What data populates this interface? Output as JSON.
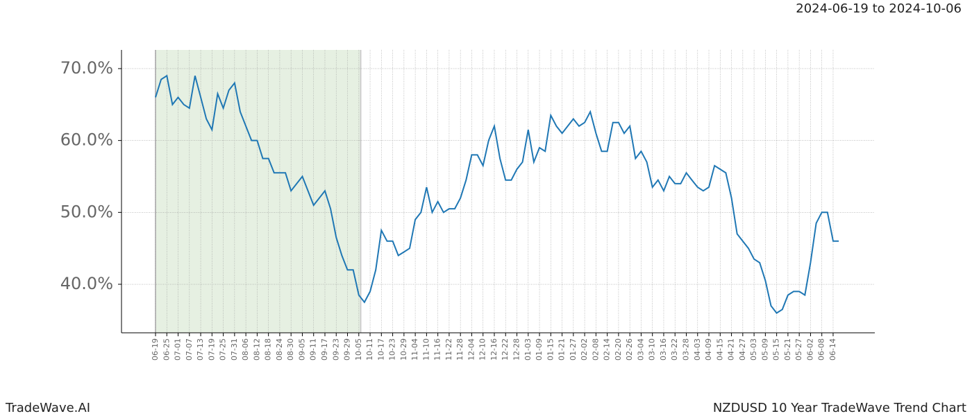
{
  "chart_data": {
    "type": "line",
    "title": "2024-06-19 to 2024-10-06",
    "footer_left": "TradeWave.AI",
    "footer_right": "NZDUSD 10 Year TradeWave Trend Chart",
    "categories": [
      "06-19",
      null,
      "06-25",
      null,
      "07-01",
      null,
      "07-07",
      null,
      "07-13",
      null,
      "07-19",
      null,
      "07-25",
      null,
      "07-31",
      null,
      "08-06",
      null,
      "08-12",
      null,
      "08-18",
      null,
      "08-24",
      null,
      "08-30",
      null,
      "09-05",
      null,
      "09-11",
      null,
      "09-17",
      null,
      "09-23",
      null,
      "09-29",
      null,
      "10-05",
      null,
      "10-11",
      null,
      "10-17",
      null,
      "10-23",
      null,
      "10-29",
      null,
      "11-04",
      null,
      "11-10",
      null,
      "11-16",
      null,
      "11-22",
      null,
      "11-28",
      null,
      "12-04",
      null,
      "12-10",
      null,
      "12-16",
      null,
      "12-22",
      null,
      "12-28",
      null,
      "01-03",
      null,
      "01-09",
      null,
      "01-15",
      null,
      "01-21",
      null,
      "01-27",
      null,
      "02-02",
      null,
      "02-08",
      null,
      "02-14",
      null,
      "02-20",
      null,
      "02-26",
      null,
      "03-04",
      null,
      "03-10",
      null,
      "03-16",
      null,
      "03-22",
      null,
      "03-28",
      null,
      "04-03",
      null,
      "04-09",
      null,
      "04-15",
      null,
      "04-21",
      null,
      "04-27",
      null,
      "05-03",
      null,
      "05-09",
      null,
      "05-15",
      null,
      "05-21",
      null,
      "05-27",
      null,
      "06-02",
      null,
      "06-08",
      null,
      "06-14",
      null
    ],
    "series": [
      {
        "color": "#1f77b4",
        "values": [
          66,
          68.5,
          69,
          65,
          66,
          65,
          64.5,
          69,
          66,
          63,
          61.5,
          66.5,
          64.5,
          67,
          68,
          64,
          62,
          60,
          60,
          57.5,
          57.5,
          55.5,
          55.5,
          55.5,
          53,
          54,
          55,
          53,
          51,
          52,
          53,
          50.5,
          46.5,
          44,
          42,
          42,
          38.5,
          37.5,
          39,
          42,
          47.5,
          46,
          46,
          44,
          44.5,
          45,
          49,
          50,
          53.5,
          50,
          51.5,
          50,
          50.5,
          50.5,
          52,
          54.5,
          58,
          58,
          56.5,
          60,
          62,
          57.5,
          54.5,
          54.5,
          56,
          57,
          61.5,
          57,
          59,
          58.5,
          63.5,
          62,
          61,
          62,
          63,
          62,
          62.5,
          64,
          61,
          58.5,
          58.5,
          62.5,
          62.5,
          61,
          62,
          57.5,
          58.5,
          57,
          53.5,
          54.5,
          53,
          55,
          54,
          54,
          55.5,
          54.5,
          53.5,
          53,
          53.5,
          56.5,
          56,
          55.5,
          52,
          47,
          46,
          45,
          43.5,
          43,
          40.5,
          37,
          36,
          36.5,
          38.5,
          39,
          39,
          38.5,
          43,
          48.5,
          50,
          50,
          46,
          46
        ]
      }
    ],
    "ylim": [
      33.25,
      72.6
    ],
    "yticks": [
      {
        "value": 40,
        "label": "40.0%"
      },
      {
        "value": 50,
        "label": "50.0%"
      },
      {
        "value": 60,
        "label": "60.0%"
      },
      {
        "value": 70,
        "label": "70.0%"
      }
    ],
    "grid": true,
    "highlight_color": "#e6f0e2"
  }
}
